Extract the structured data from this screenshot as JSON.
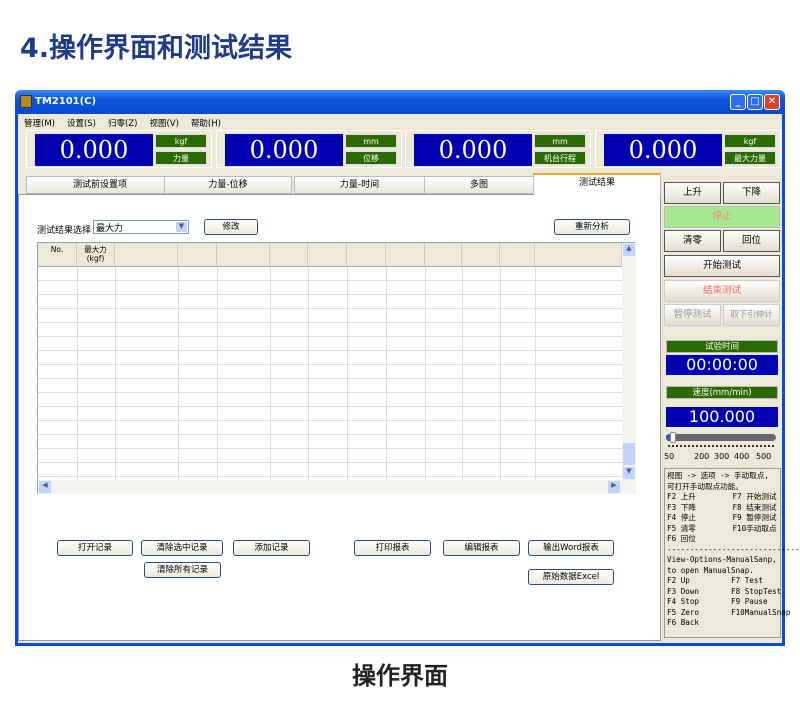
{
  "heading": "4.操作界面和测试结果",
  "caption": "操作界面",
  "window": {
    "title": "TM2101(C)",
    "menu": [
      "管理(M)",
      "设置(S)",
      "归零(Z)",
      "视图(V)",
      "帮助(H)"
    ]
  },
  "displays": [
    {
      "value": "0.000",
      "unit": "kgf",
      "label": "力量"
    },
    {
      "value": "0.000",
      "unit": "mm",
      "label": "位移"
    },
    {
      "value": "0.000",
      "unit": "mm",
      "label": "机台行程"
    },
    {
      "value": "0.000",
      "unit": "kgf",
      "label": "最大力量"
    }
  ],
  "tabs": [
    {
      "label": "测试前设置项"
    },
    {
      "label": "力量-位移"
    },
    {
      "label": "力量-时间"
    },
    {
      "label": "多图"
    },
    {
      "label": "测试结果",
      "active": true
    }
  ],
  "results": {
    "select_label": "测试结果选择",
    "select_value": "最大力",
    "modify": "修改",
    "reanalyze": "重新分析",
    "columns": [
      "No.",
      "最大力\n(kgf)",
      "",
      "",
      "",
      "",
      "",
      "",
      "",
      "",
      "",
      ""
    ],
    "buttons": {
      "open": "打开记录",
      "clear_selected": "清除选中记录",
      "add": "添加记录",
      "clear_all": "清除所有记录",
      "print": "打印报表",
      "edit": "编辑报表",
      "word": "输出Word报表",
      "excel": "原始数据Excel"
    }
  },
  "controls": {
    "up": "上升",
    "down": "下降",
    "stop": "停止",
    "zero": "清零",
    "back": "回位",
    "start": "开始测试",
    "end": "结束测试",
    "pause": "暂停测试",
    "remove": "取下引伸计",
    "time_label": "试验时间",
    "time_value": "00:00:00",
    "speed_label": "速度(mm/min)",
    "speed_value": "100.000",
    "speed_ticks": [
      "50",
      "200",
      "300",
      "400",
      "500"
    ],
    "speed_fraction": 0.05
  },
  "help_text": "视图 -> 选项 -> 手动取点,\n可打开手动取点功能。\nF2 上升        F7 开始测试\nF3 下降        F8 结束测试\nF4 停止        F9 暂停测试\nF5 清零        F10手动取点\nF6 回位\n-----------------------------\nView-Options-ManualSanp,\nto open ManualSnap.\nF2 Up         F7 Test\nF3 Down       F8 StopTest\nF4 Stop       F9 Pause\nF5 Zero       F10ManualSnap\nF6 Back"
}
